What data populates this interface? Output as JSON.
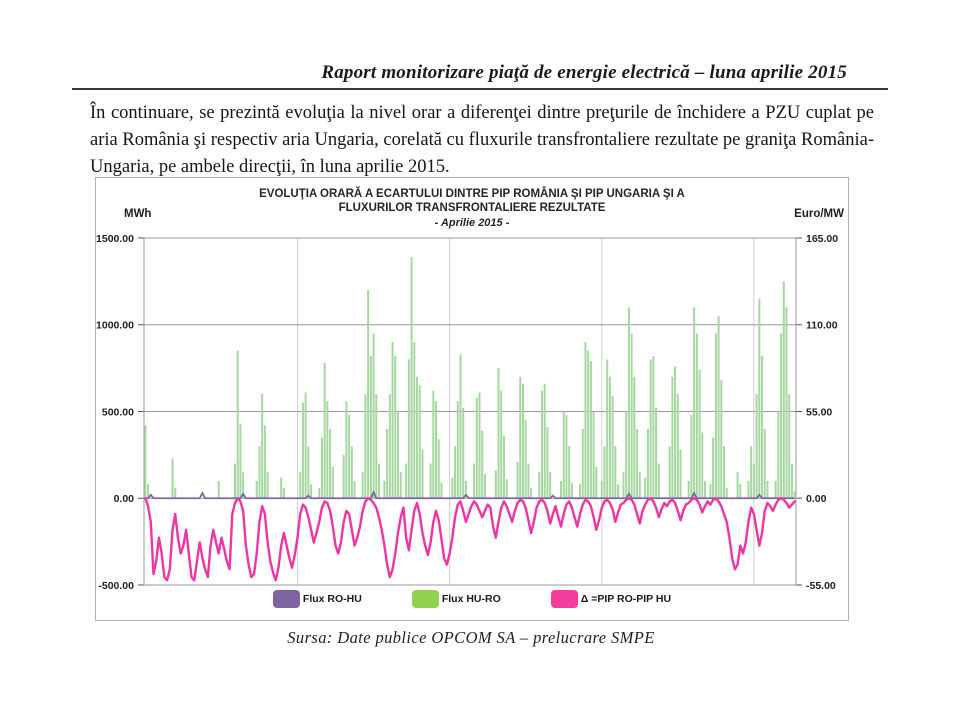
{
  "page": {
    "header_title": "Raport monitorizare piaţă de energie electrică – luna aprilie 2015",
    "paragraph": "În continuare, se prezintă evoluţia la nivel orar a diferenţei dintre preţurile de închidere a PZU cuplat pe aria România şi respectiv aria Ungaria, corelată cu fluxurile transfrontaliere rezultate pe graniţa România-Ungaria, pe ambele direcţii, în luna aprilie 2015.",
    "source_note": "Sursa: Date publice OPCOM SA – prelucrare SMPE"
  },
  "chart_data": {
    "type": "bar",
    "subtype": "combo bar+line, hourly series for April 2015 sampled every 3 hours (240 points)",
    "title_line1": "EVOLUŢIA ORARĂ A ECARTULUI DINTRE PIP ROMÂNIA ŞI PIP UNGARIA ŞI A",
    "title_line2": "FLUXURILOR TRANSFRONTALIERE REZULTATE",
    "subtitle": "- Aprilie 2015 -",
    "grid": "horizontal on, weekly vertical separators",
    "legend_position": "bottom",
    "left_axis": {
      "label": "MWh",
      "tick_values": [
        1500,
        1000,
        500,
        0,
        -500
      ],
      "tick_labels": [
        "1500.00",
        "1000.00",
        "500.00",
        "0.00",
        "-500.00"
      ],
      "range": [
        -500,
        1500
      ]
    },
    "right_axis": {
      "label": "Euro/MW",
      "tick_values": [
        165,
        110,
        55,
        0,
        -55
      ],
      "tick_labels": [
        "165.00",
        "110.00",
        "55.00",
        "0.00",
        "-55.00"
      ],
      "range": [
        -55,
        165
      ]
    },
    "legend": [
      {
        "label": "Flux RO-HU",
        "color": "#8064A2"
      },
      {
        "label": "Flux HU-RO",
        "color": "#92D050"
      },
      {
        "label": "Δ =PIP RO-PIP HU",
        "color": "#F23C9E"
      }
    ],
    "colors": {
      "green_bar": "#A7D7A1",
      "purple_line": "#8064A2",
      "pink_line": "#ED35A3",
      "gridline": "#9a9a9a",
      "weekly_gridline": "#cfcfcf"
    },
    "series": [
      {
        "name": "Flux HU-RO",
        "axis": "left",
        "type": "bar",
        "color": "#A7D7A1",
        "values": [
          420,
          80,
          0,
          0,
          0,
          0,
          0,
          0,
          0,
          0,
          230,
          60,
          0,
          0,
          0,
          0,
          0,
          0,
          0,
          0,
          0,
          0,
          0,
          0,
          0,
          0,
          0,
          100,
          0,
          0,
          0,
          0,
          0,
          200,
          850,
          430,
          150,
          0,
          0,
          0,
          0,
          100,
          300,
          600,
          420,
          150,
          0,
          0,
          0,
          0,
          120,
          60,
          0,
          0,
          0,
          0,
          0,
          150,
          550,
          610,
          300,
          80,
          0,
          0,
          60,
          350,
          780,
          560,
          400,
          180,
          0,
          0,
          0,
          250,
          560,
          480,
          300,
          100,
          0,
          0,
          150,
          600,
          1200,
          820,
          950,
          600,
          200,
          0,
          100,
          400,
          600,
          900,
          820,
          500,
          150,
          0,
          200,
          800,
          1390,
          900,
          700,
          650,
          280,
          0,
          0,
          200,
          620,
          560,
          340,
          90,
          0,
          0,
          0,
          120,
          300,
          560,
          830,
          520,
          100,
          0,
          0,
          200,
          580,
          610,
          390,
          140,
          0,
          0,
          0,
          160,
          750,
          620,
          360,
          110,
          0,
          0,
          0,
          210,
          700,
          660,
          450,
          200,
          60,
          0,
          0,
          150,
          620,
          660,
          410,
          150,
          0,
          0,
          0,
          100,
          500,
          480,
          300,
          90,
          0,
          0,
          80,
          400,
          900,
          850,
          790,
          500,
          180,
          0,
          100,
          300,
          800,
          700,
          590,
          300,
          80,
          0,
          150,
          500,
          1100,
          950,
          700,
          400,
          150,
          0,
          120,
          400,
          800,
          820,
          520,
          200,
          0,
          0,
          0,
          300,
          700,
          760,
          600,
          280,
          0,
          0,
          100,
          480,
          1100,
          950,
          740,
          380,
          100,
          0,
          80,
          350,
          950,
          1050,
          680,
          300,
          60,
          0,
          0,
          0,
          150,
          80,
          0,
          0,
          100,
          300,
          200,
          600,
          1150,
          820,
          400,
          100,
          0,
          0,
          100,
          500,
          950,
          1250,
          1100,
          600,
          200,
          40
        ]
      },
      {
        "name": "Flux RO-HU",
        "axis": "left",
        "type": "line",
        "color": "#8064A2",
        "baseline": 0,
        "values_sparse": {
          "2": 20,
          "21": 30,
          "36": 25,
          "60": 15,
          "84": 35,
          "118": 20,
          "150": 15,
          "178": 25,
          "202": 30,
          "226": 20
        }
      },
      {
        "name": "Δ =PIP RO-PIP HU",
        "axis": "right",
        "type": "line",
        "color": "#ED35A3",
        "values": [
          0,
          -5,
          -15,
          -48,
          -40,
          -25,
          -35,
          -50,
          -52,
          -45,
          -20,
          -10,
          -25,
          -35,
          -30,
          -20,
          -35,
          -50,
          -52,
          -40,
          -28,
          -38,
          -45,
          -50,
          -30,
          -20,
          -28,
          -35,
          -25,
          -32,
          -40,
          -45,
          -10,
          -3,
          0,
          -2,
          -8,
          -30,
          -42,
          -50,
          -48,
          -35,
          -15,
          -5,
          -10,
          -28,
          -40,
          -47,
          -52,
          -44,
          -30,
          -22,
          -30,
          -38,
          -44,
          -36,
          -25,
          -10,
          -4,
          -6,
          -12,
          -20,
          -28,
          -22,
          -15,
          -6,
          -2,
          -3,
          -8,
          -18,
          -30,
          -35,
          -28,
          -15,
          -8,
          -10,
          -20,
          -30,
          -25,
          -18,
          -8,
          -2,
          0,
          -1,
          -3,
          -6,
          -12,
          -20,
          -30,
          -42,
          -50,
          -45,
          -35,
          -22,
          -12,
          -6,
          -25,
          -33,
          -20,
          -8,
          -3,
          -10,
          -22,
          -30,
          -36,
          -28,
          -15,
          -8,
          -14,
          -26,
          -38,
          -42,
          -35,
          -25,
          -12,
          -4,
          -2,
          -8,
          -15,
          -10,
          -5,
          -2,
          -4,
          -8,
          -12,
          -8,
          -4,
          -6,
          -18,
          -25,
          -15,
          -6,
          -2,
          -5,
          -10,
          -15,
          -8,
          -3,
          -1,
          -2,
          -6,
          -14,
          -22,
          -15,
          -6,
          -2,
          -1,
          -3,
          -8,
          -16,
          -10,
          -5,
          -12,
          -18,
          -10,
          -4,
          -2,
          -6,
          -12,
          -18,
          -10,
          -4,
          -1,
          -2,
          -5,
          -12,
          -20,
          -14,
          -6,
          -2,
          -1,
          -3,
          -7,
          -15,
          -9,
          -4,
          -3,
          -1,
          0,
          -1,
          -4,
          -10,
          -16,
          -8,
          -4,
          -1,
          0,
          -2,
          -6,
          -12,
          -7,
          -3,
          -5,
          -2,
          -1,
          -3,
          -8,
          -14,
          -8,
          -4,
          -3,
          -1,
          0,
          -1,
          -4,
          -9,
          -5,
          -2,
          -4,
          -1,
          0,
          -2,
          -5,
          -10,
          -15,
          -25,
          -38,
          -45,
          -42,
          -30,
          -35,
          -28,
          -15,
          -6,
          -10,
          -20,
          -30,
          -22,
          -8,
          -3,
          -5,
          -8,
          -4,
          -1,
          0,
          -1,
          -3,
          -6,
          -4,
          -2
        ]
      }
    ]
  }
}
